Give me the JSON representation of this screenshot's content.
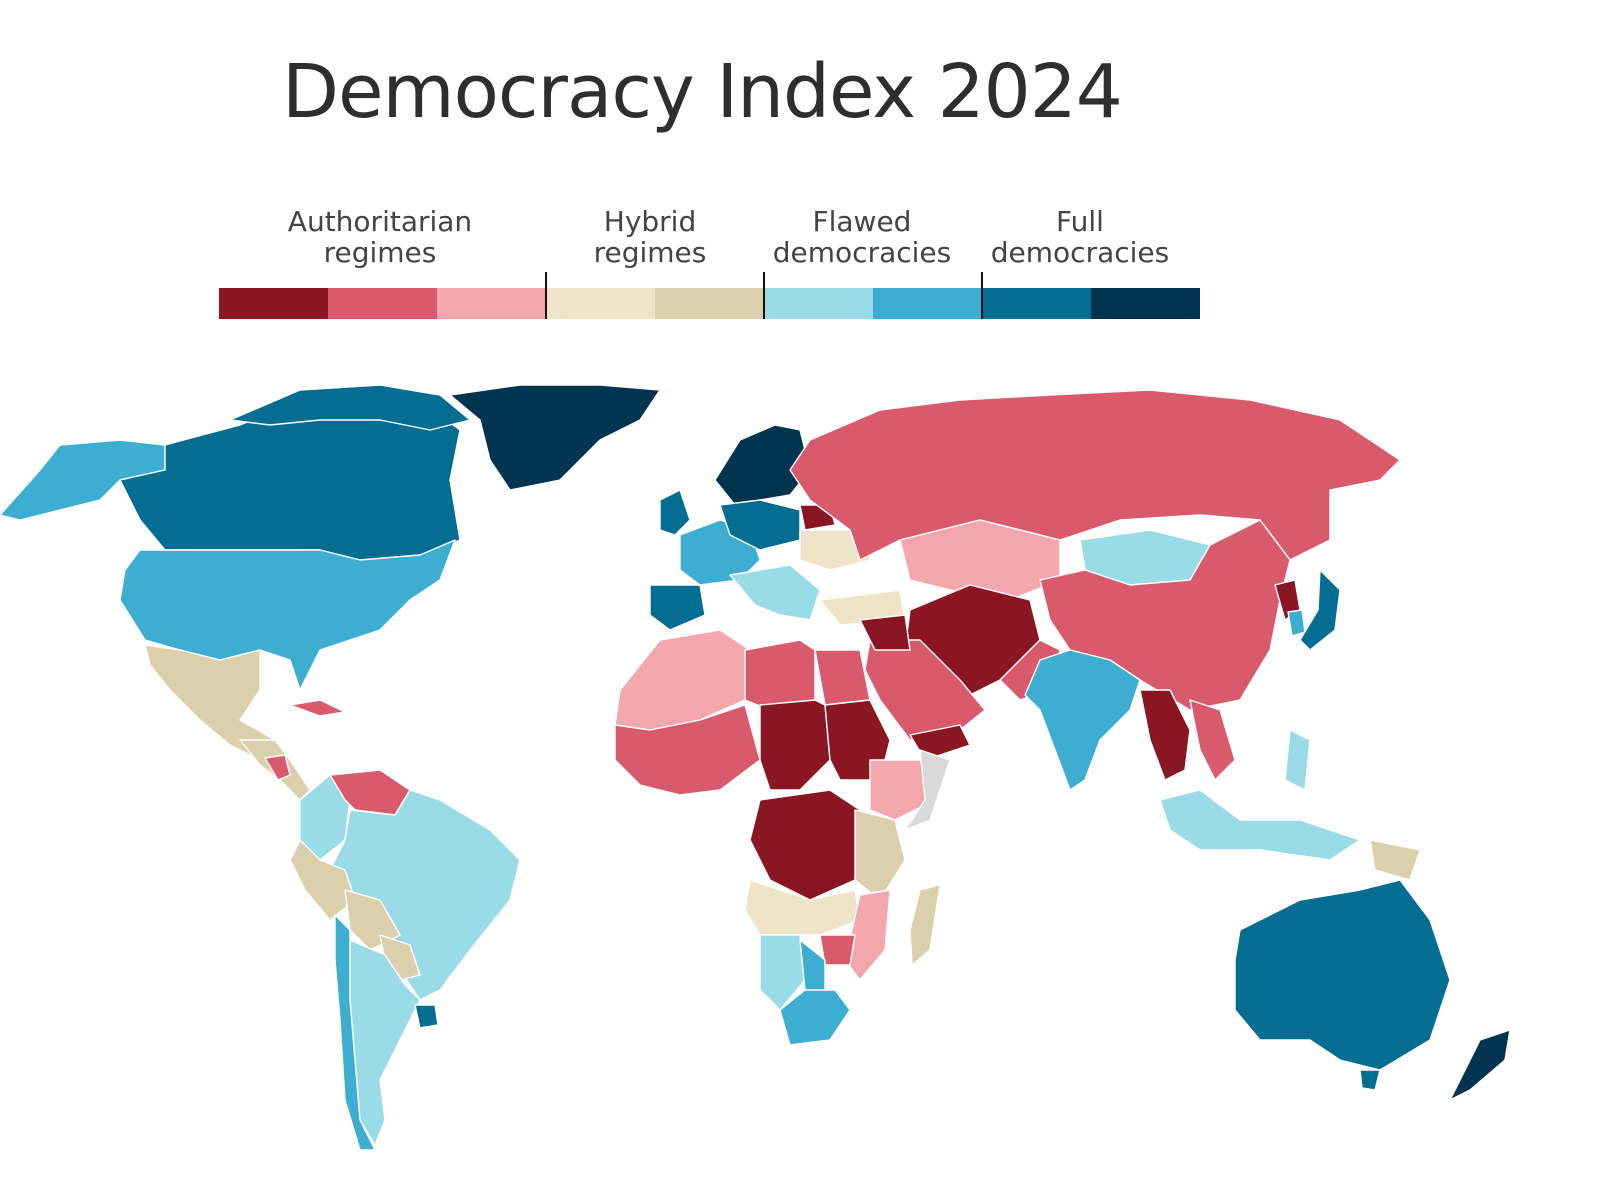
{
  "title": "Democracy Index 2024",
  "legend": {
    "categories": [
      {
        "line1": "Authoritarian",
        "line2": "regimes"
      },
      {
        "line1": "Hybrid",
        "line2": "regimes"
      },
      {
        "line1": "Flawed",
        "line2": "democracies"
      },
      {
        "line1": "Full",
        "line2": "democracies"
      }
    ],
    "colors": [
      "#891622",
      "#d85a6c",
      "#f4a7ad",
      "#efe4c8",
      "#dcd0ac",
      "#9adbe8",
      "#3daed2",
      "#036e92",
      "#00344f"
    ],
    "no_data_color": "#d9d9d9"
  }
}
